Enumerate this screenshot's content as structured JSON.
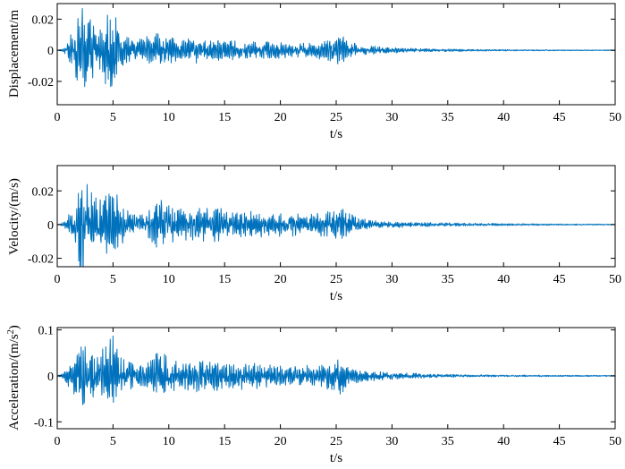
{
  "colors": {
    "trace": "#0072BD",
    "axis": "#000000"
  },
  "chart_data": [
    {
      "type": "line",
      "title": "",
      "xlabel": "t/s",
      "ylabel": "Displacement/m",
      "xlim": [
        0,
        50
      ],
      "ylim": [
        -0.035,
        0.03
      ],
      "xticks": [
        0,
        5,
        10,
        15,
        20,
        25,
        30,
        35,
        40,
        45,
        50
      ],
      "yticks": [
        -0.02,
        0,
        0.02
      ],
      "ytick_labels": [
        "-0.02",
        "0",
        "0.02"
      ],
      "grid": false,
      "series": [
        {
          "t": [
            0,
            0.5,
            1.0,
            1.5,
            1.8,
            2.0,
            2.3,
            2.5,
            2.8,
            3.0,
            3.3,
            3.6,
            4.0,
            4.3,
            4.6,
            4.8,
            5.0,
            5.3,
            5.6,
            6.0,
            6.5,
            7.0,
            7.5,
            8.0,
            8.5,
            9.0,
            9.5,
            10.0,
            10.5,
            11.0,
            11.5,
            12.0,
            13.0,
            14.0,
            15.0,
            16.0,
            17.0,
            18.0,
            19.0,
            20.0,
            21.0,
            22.0,
            23.0,
            24.0,
            24.5,
            25.0,
            25.5,
            26.0,
            27.0,
            28.0,
            29.0,
            30.0,
            31.0,
            32.0,
            34.0,
            36.0,
            38.0,
            40.0,
            42.0,
            44.0,
            46.0,
            48.0,
            50.0
          ],
          "envelope": [
            0.0002,
            0.001,
            0.008,
            0.015,
            0.022,
            0.025,
            0.033,
            0.03,
            0.025,
            0.02,
            0.018,
            0.02,
            0.02,
            0.024,
            0.026,
            0.03,
            0.028,
            0.02,
            0.014,
            0.01,
            0.008,
            0.007,
            0.008,
            0.01,
            0.01,
            0.011,
            0.01,
            0.009,
            0.008,
            0.007,
            0.007,
            0.009,
            0.008,
            0.008,
            0.007,
            0.007,
            0.006,
            0.006,
            0.006,
            0.006,
            0.005,
            0.005,
            0.005,
            0.007,
            0.009,
            0.011,
            0.011,
            0.007,
            0.004,
            0.003,
            0.0025,
            0.002,
            0.0018,
            0.0012,
            0.001,
            0.0008,
            0.0006,
            0.0005,
            0.0004,
            0.0004,
            0.0003,
            0.0003,
            0.0003
          ]
        }
      ]
    },
    {
      "type": "line",
      "title": "",
      "xlabel": "t/s",
      "ylabel": "Velocity/(m/s)",
      "xlim": [
        0,
        50
      ],
      "ylim": [
        -0.025,
        0.035
      ],
      "xticks": [
        0,
        5,
        10,
        15,
        20,
        25,
        30,
        35,
        40,
        45,
        50
      ],
      "yticks": [
        -0.02,
        0,
        0.02
      ],
      "ytick_labels": [
        "-0.02",
        "0",
        "0.02"
      ],
      "grid": false,
      "series": [
        {
          "t": [
            0,
            0.5,
            1.0,
            1.5,
            2.0,
            2.3,
            2.6,
            3.0,
            3.5,
            4.0,
            4.5,
            5.0,
            5.5,
            6.0,
            7.0,
            8.0,
            8.5,
            9.0,
            9.5,
            10.0,
            11.0,
            12.0,
            13.0,
            14.0,
            15.0,
            16.0,
            17.0,
            18.0,
            19.0,
            20.0,
            21.0,
            22.0,
            23.0,
            24.0,
            25.0,
            25.5,
            26.0,
            27.0,
            28.0,
            29.0,
            30.0,
            32.0,
            34.0,
            36.0,
            38.0,
            40.0,
            42.0,
            44.0,
            46.0,
            48.0,
            50.0
          ],
          "envelope": [
            0.0002,
            0.001,
            0.006,
            0.012,
            0.028,
            0.034,
            0.026,
            0.02,
            0.016,
            0.018,
            0.02,
            0.024,
            0.016,
            0.01,
            0.006,
            0.007,
            0.012,
            0.018,
            0.016,
            0.012,
            0.01,
            0.01,
            0.01,
            0.011,
            0.01,
            0.009,
            0.008,
            0.008,
            0.008,
            0.008,
            0.007,
            0.007,
            0.007,
            0.008,
            0.01,
            0.011,
            0.008,
            0.004,
            0.003,
            0.0025,
            0.002,
            0.0015,
            0.0012,
            0.001,
            0.0008,
            0.0007,
            0.0006,
            0.0005,
            0.0004,
            0.0004,
            0.0003
          ]
        }
      ]
    },
    {
      "type": "line",
      "title": "",
      "xlabel": "t/s",
      "ylabel": "Acceleration/(m/s2)",
      "ylabel_parts": [
        "Acceleration/(m/s",
        "2",
        ")"
      ],
      "xlim": [
        0,
        50
      ],
      "ylim": [
        -0.115,
        0.105
      ],
      "xticks": [
        0,
        5,
        10,
        15,
        20,
        25,
        30,
        35,
        40,
        45,
        50
      ],
      "yticks": [
        -0.1,
        0,
        0.1
      ],
      "ytick_labels": [
        "-0.1",
        "0",
        "0.1"
      ],
      "grid": false,
      "series": [
        {
          "t": [
            0,
            0.5,
            1.0,
            1.5,
            2.0,
            2.3,
            2.6,
            3.0,
            3.5,
            4.0,
            4.5,
            4.8,
            5.0,
            5.5,
            6.0,
            7.0,
            8.0,
            8.5,
            9.0,
            9.5,
            10.0,
            11.0,
            12.0,
            13.0,
            14.0,
            15.0,
            16.0,
            17.0,
            18.0,
            19.0,
            20.0,
            21.0,
            22.0,
            23.0,
            24.0,
            25.0,
            25.5,
            26.0,
            27.0,
            28.0,
            29.0,
            30.0,
            32.0,
            34.0,
            36.0,
            38.0,
            40.0,
            42.0,
            44.0,
            46.0,
            48.0,
            50.0
          ],
          "envelope": [
            0.001,
            0.005,
            0.03,
            0.05,
            0.07,
            0.11,
            0.08,
            0.06,
            0.05,
            0.06,
            0.07,
            0.1,
            0.09,
            0.05,
            0.035,
            0.03,
            0.03,
            0.04,
            0.065,
            0.05,
            0.04,
            0.035,
            0.035,
            0.035,
            0.035,
            0.03,
            0.03,
            0.03,
            0.028,
            0.027,
            0.027,
            0.025,
            0.025,
            0.025,
            0.03,
            0.04,
            0.04,
            0.025,
            0.015,
            0.012,
            0.01,
            0.008,
            0.006,
            0.004,
            0.003,
            0.0025,
            0.002,
            0.002,
            0.0018,
            0.0015,
            0.0015,
            0.0012
          ]
        }
      ]
    }
  ]
}
